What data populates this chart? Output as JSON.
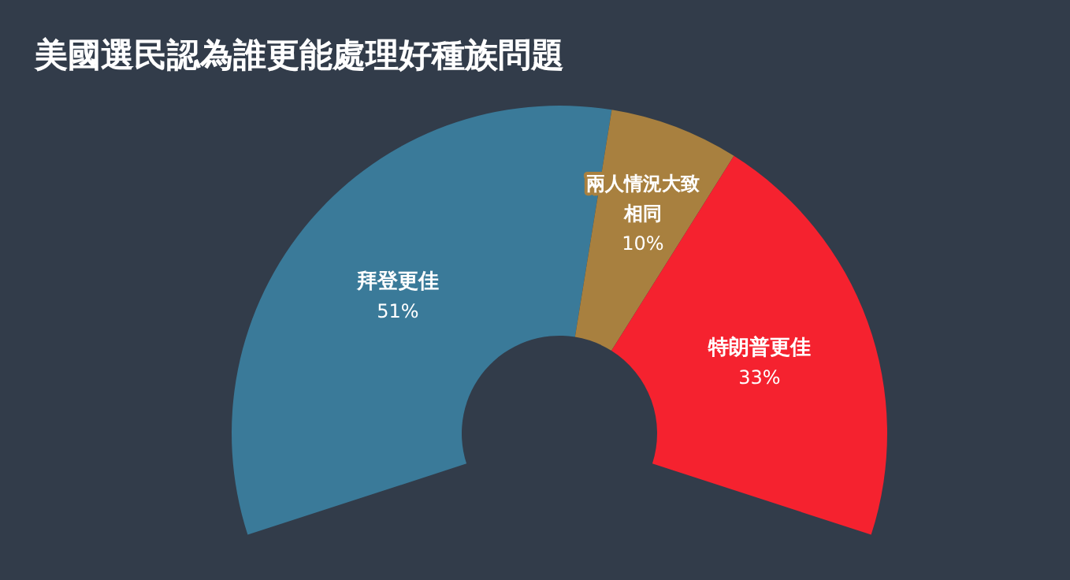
{
  "chart_data": {
    "type": "donut",
    "title": "美國選民認為誰更能處理好種族問題",
    "categories": [
      "拜登更佳",
      "兩人情況大致相同",
      "特朗普更佳"
    ],
    "values": [
      51,
      10,
      33
    ],
    "colors": [
      "#3a7a99",
      "#a8803f",
      "#f5222f"
    ],
    "value_labels": [
      "51%",
      "10%",
      "33%"
    ]
  }
}
